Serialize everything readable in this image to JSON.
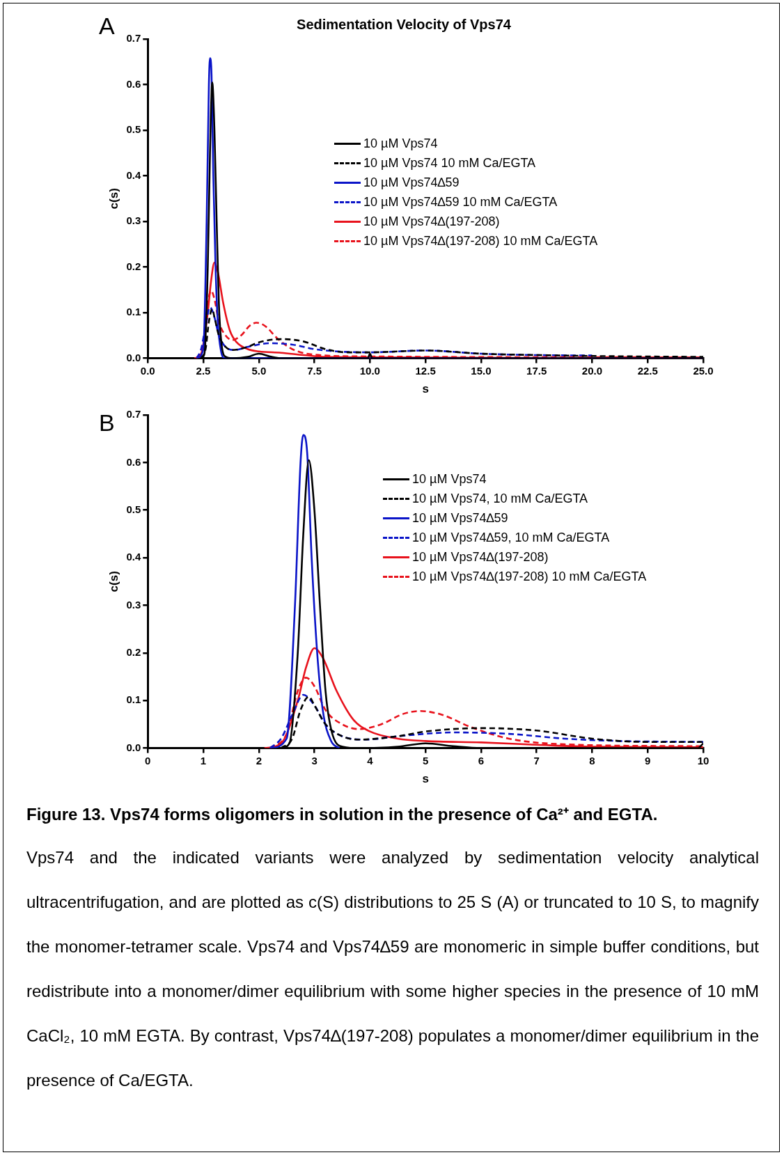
{
  "chart_data": [
    {
      "type": "line",
      "title": "Sedimentation Velocity of Vps74",
      "xlabel": "s",
      "ylabel": "c(s)",
      "annotations": [
        "A"
      ],
      "xlim": [
        0,
        25
      ],
      "xticks": [
        {
          "value": 0,
          "label": "0.0"
        },
        2.5,
        {
          "value": 5,
          "label": "5.0"
        },
        7.5,
        {
          "value": 10,
          "label": "10.0"
        },
        12.5,
        {
          "value": 15,
          "label": "15.0"
        },
        17.5,
        {
          "value": 20,
          "label": "20.0"
        },
        22.5,
        {
          "value": 25,
          "label": "25.0"
        }
      ],
      "ylim": [
        0,
        0.7
      ],
      "yticks": [
        {
          "value": 0,
          "label": "0.0"
        },
        0.1,
        0.2,
        0.3,
        0.4,
        0.5,
        0.6,
        0.7
      ],
      "grid": false,
      "legend": "top right",
      "marker": "none",
      "series": [
        {
          "name": "10 µM Vps74",
          "color": "#000000",
          "line_style": "solid",
          "x": [
            2.4,
            2.55,
            2.7,
            2.8,
            2.9,
            3.0,
            3.1,
            3.2,
            3.3,
            3.45,
            3.8,
            4.5,
            5.0,
            5.5,
            6.0,
            9.9,
            10.0,
            10.1,
            25
          ],
          "values": [
            0,
            0.01,
            0.2,
            0.45,
            0.605,
            0.5,
            0.3,
            0.12,
            0.04,
            0.005,
            0,
            0.003,
            0.01,
            0.004,
            0,
            0,
            0.01,
            0,
            0
          ]
        },
        {
          "name": "10 µM Vps74 10 mM Ca/EGTA",
          "color": "#000000",
          "line_style": "dashed",
          "x": [
            2.4,
            2.6,
            2.75,
            2.9,
            3.0,
            3.2,
            3.5,
            3.8,
            4.5,
            5.0,
            6.0,
            7.0,
            8.0,
            9.0,
            10.0,
            12.5,
            15.0,
            17.5,
            20.0,
            25
          ],
          "values": [
            0,
            0.02,
            0.08,
            0.108,
            0.09,
            0.05,
            0.025,
            0.018,
            0.025,
            0.035,
            0.042,
            0.037,
            0.02,
            0.013,
            0.013,
            0.017,
            0.01,
            0.007,
            0.005,
            0.003
          ]
        },
        {
          "name": "10 µM Vps74∆59",
          "color": "#0a14c8",
          "line_style": "solid",
          "x": [
            2.2,
            2.5,
            2.65,
            2.75,
            2.8,
            2.87,
            2.95,
            3.05,
            3.15,
            3.3,
            3.45,
            25
          ],
          "values": [
            0,
            0.02,
            0.3,
            0.6,
            0.658,
            0.62,
            0.4,
            0.2,
            0.08,
            0.015,
            0,
            0
          ]
        },
        {
          "name": "10 µM Vps74∆59 10 mM Ca/EGTA",
          "color": "#0a14c8",
          "line_style": "dashed",
          "x": [
            2.2,
            2.4,
            2.6,
            2.8,
            3.0,
            3.2,
            3.5,
            3.9,
            4.5,
            5.5,
            6.5,
            7.5,
            8.5,
            10.0,
            12.5,
            15.0,
            17.5,
            20.0
          ],
          "values": [
            0,
            0.02,
            0.07,
            0.112,
            0.09,
            0.05,
            0.025,
            0.018,
            0.025,
            0.033,
            0.03,
            0.02,
            0.015,
            0.013,
            0.017,
            0.01,
            0.007,
            0.006
          ]
        },
        {
          "name": "10 µM Vps74∆(197-208)",
          "color": "#e8121c",
          "line_style": "solid",
          "x": [
            2.1,
            2.4,
            2.7,
            2.85,
            3.0,
            3.15,
            3.4,
            3.7,
            4.0,
            4.5,
            5.0,
            6.0,
            7.0,
            8.0,
            10.0,
            25
          ],
          "values": [
            0,
            0.01,
            0.1,
            0.17,
            0.21,
            0.19,
            0.12,
            0.06,
            0.035,
            0.02,
            0.015,
            0.012,
            0.007,
            0.003,
            0.002,
            0
          ]
        },
        {
          "name": "10 µM Vps74∆(197-208) 10 mM Ca/EGTA",
          "color": "#e8121c",
          "line_style": "dashed",
          "x": [
            2.2,
            2.5,
            2.7,
            2.85,
            3.0,
            3.2,
            3.5,
            3.8,
            4.2,
            4.6,
            4.9,
            5.3,
            5.8,
            6.5,
            7.5,
            10.0,
            25
          ],
          "values": [
            0,
            0.03,
            0.12,
            0.148,
            0.13,
            0.08,
            0.05,
            0.04,
            0.05,
            0.072,
            0.078,
            0.07,
            0.045,
            0.02,
            0.008,
            0.004,
            0.002
          ]
        }
      ]
    },
    {
      "type": "line",
      "xlabel": "s",
      "ylabel": "c(s)",
      "annotations": [
        "B",
        "Figure 13.  Vps74 forms oligomers in solution in the presence of Ca²⁺ and EGTA.",
        "Vps74 and the indicated variants were analyzed by sedimentation velocity analytical ultracentrifugation, and are plotted as c(S) distributions to 25 S (A) or truncated to 10 S, to magnify the monomer-tetramer scale. Vps74 and Vps74∆59 are monomeric in simple buffer conditions, but redistribute into a monomer/dimer equilibrium with some higher species in the presence of 10 mM CaCl₂, 10 mM EGTA. By contrast, Vps74∆(197-208) populates a monomer/dimer equilibrium in the presence of Ca/EGTA."
      ],
      "xlim": [
        0,
        10
      ],
      "xticks": [
        0,
        1,
        2,
        3,
        4,
        5,
        6,
        7,
        8,
        9,
        10
      ],
      "ylim": [
        0,
        0.7
      ],
      "yticks": [
        {
          "value": 0,
          "label": "0.0"
        },
        0.1,
        0.2,
        0.3,
        0.4,
        0.5,
        0.6,
        0.7
      ],
      "grid": false,
      "legend": "top right",
      "marker": "none",
      "series": [
        {
          "name": "10 µM Vps74",
          "color": "#000000",
          "line_style": "solid",
          "x": [
            2.4,
            2.55,
            2.7,
            2.8,
            2.9,
            3.0,
            3.1,
            3.2,
            3.3,
            3.45,
            3.8,
            4.5,
            5.0,
            5.5,
            6.0,
            9.9,
            10.0
          ],
          "values": [
            0,
            0.01,
            0.2,
            0.45,
            0.605,
            0.5,
            0.3,
            0.12,
            0.04,
            0.005,
            0,
            0.003,
            0.01,
            0.004,
            0,
            0,
            0.01
          ]
        },
        {
          "name": "10 µM Vps74, 10 mM Ca/EGTA",
          "color": "#000000",
          "line_style": "dashed",
          "x": [
            2.4,
            2.6,
            2.75,
            2.9,
            3.0,
            3.2,
            3.5,
            3.8,
            4.5,
            5.0,
            6.0,
            7.0,
            8.0,
            9.0,
            10.0
          ],
          "values": [
            0,
            0.02,
            0.08,
            0.108,
            0.09,
            0.05,
            0.025,
            0.018,
            0.025,
            0.035,
            0.042,
            0.037,
            0.02,
            0.013,
            0.013
          ]
        },
        {
          "name": "10 µM Vps74∆59",
          "color": "#0a14c8",
          "line_style": "solid",
          "x": [
            2.2,
            2.5,
            2.65,
            2.75,
            2.8,
            2.87,
            2.95,
            3.05,
            3.15,
            3.3,
            3.45
          ],
          "values": [
            0,
            0.02,
            0.3,
            0.6,
            0.658,
            0.62,
            0.4,
            0.2,
            0.08,
            0.015,
            0
          ]
        },
        {
          "name": "10 µM Vps74∆59, 10 mM Ca/EGTA",
          "color": "#0a14c8",
          "line_style": "dashed",
          "x": [
            2.2,
            2.4,
            2.6,
            2.8,
            3.0,
            3.2,
            3.5,
            3.9,
            4.5,
            5.5,
            6.5,
            7.5,
            8.5,
            10.0
          ],
          "values": [
            0,
            0.02,
            0.07,
            0.112,
            0.09,
            0.05,
            0.025,
            0.018,
            0.025,
            0.033,
            0.03,
            0.02,
            0.015,
            0.013
          ]
        },
        {
          "name": "10 µM Vps74∆(197-208)",
          "color": "#e8121c",
          "line_style": "solid",
          "x": [
            2.1,
            2.4,
            2.7,
            2.85,
            3.0,
            3.15,
            3.4,
            3.7,
            4.0,
            4.5,
            5.0,
            6.0,
            7.0,
            8.0,
            10.0
          ],
          "values": [
            0,
            0.01,
            0.1,
            0.17,
            0.21,
            0.19,
            0.12,
            0.06,
            0.035,
            0.02,
            0.015,
            0.012,
            0.007,
            0.003,
            0.002
          ]
        },
        {
          "name": "10 µM Vps74∆(197-208) 10 mM Ca/EGTA",
          "color": "#e8121c",
          "line_style": "dashed",
          "x": [
            2.2,
            2.5,
            2.7,
            2.85,
            3.0,
            3.2,
            3.5,
            3.8,
            4.2,
            4.6,
            4.9,
            5.3,
            5.8,
            6.5,
            7.5,
            10.0
          ],
          "values": [
            0,
            0.03,
            0.12,
            0.148,
            0.13,
            0.08,
            0.05,
            0.04,
            0.05,
            0.072,
            0.078,
            0.07,
            0.045,
            0.02,
            0.008,
            0.004
          ]
        }
      ]
    }
  ]
}
